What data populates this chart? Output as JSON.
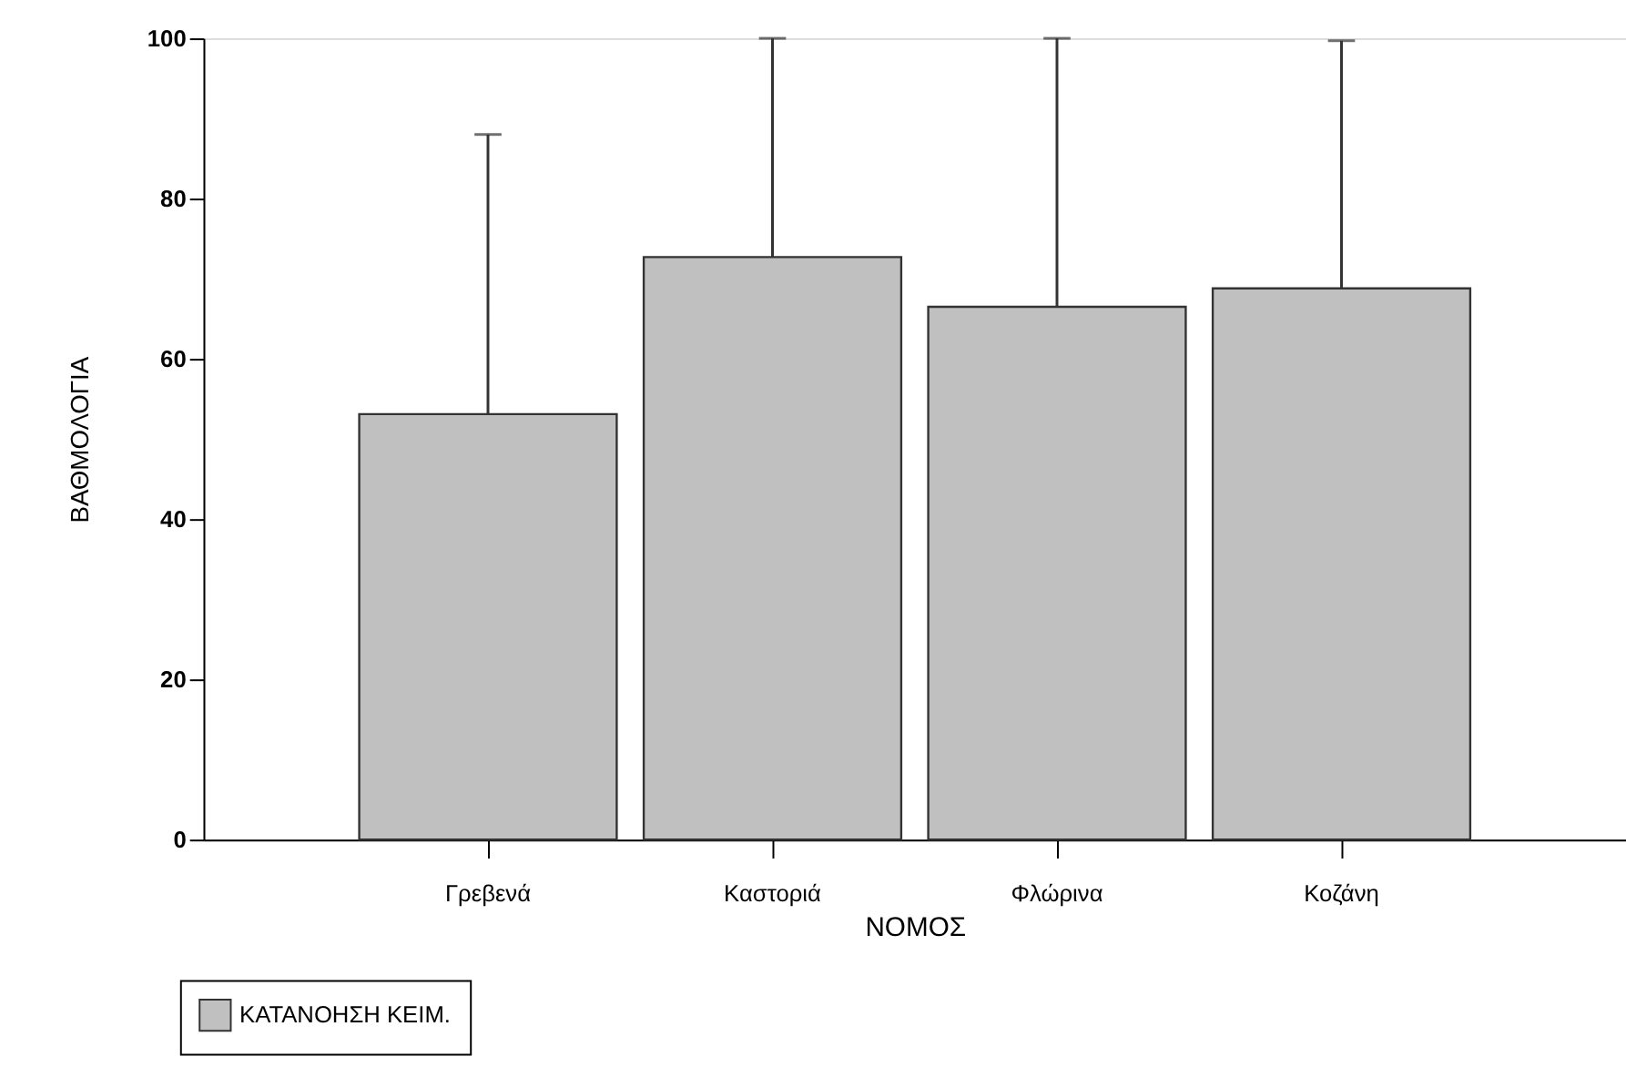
{
  "chart_data": {
    "type": "bar",
    "xlabel": "ΝΟΜΟΣ",
    "ylabel": "ΒΑΘΜΟΛΟΓΙΑ",
    "categories": [
      "Γρεβενά",
      "Καστοριά",
      "Φλώρινα",
      "Κοζάνη"
    ],
    "series": [
      {
        "name": "ΚΑΤΑΝΟΗΣΗ ΚΕΙΜ.",
        "color": "#c0c0c0",
        "values": [
          53.1,
          72.7,
          66.5,
          68.8
        ],
        "errors": [
          [
            53.1,
            88.0
          ],
          [
            72.7,
            100
          ],
          [
            66.5,
            100
          ],
          [
            68.8,
            99.7
          ]
        ]
      }
    ],
    "ylim": [
      0,
      100
    ],
    "yticks": [
      0,
      20,
      40,
      60,
      80,
      100
    ],
    "grid": false,
    "legend": "bottom left"
  }
}
